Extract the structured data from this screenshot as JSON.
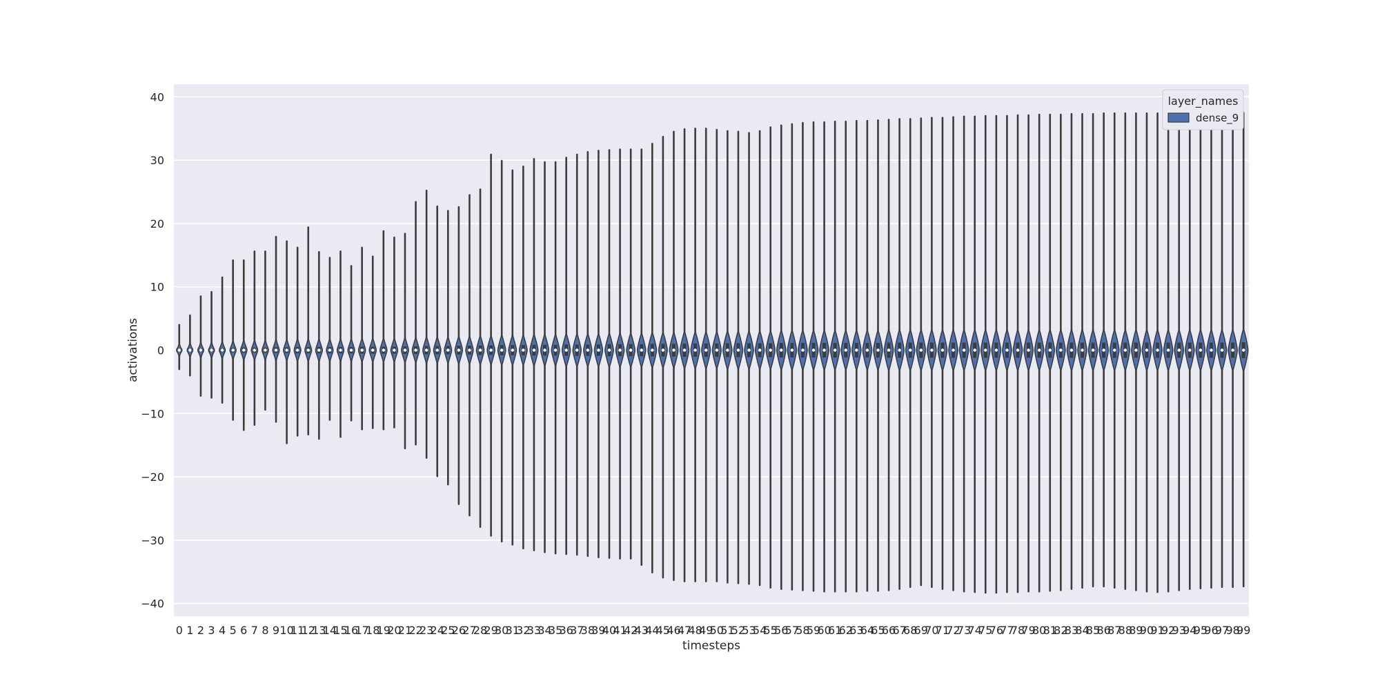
{
  "chart_data": {
    "type": "violin",
    "xlabel": "timesteps",
    "ylabel": "activations",
    "ylim": [
      -42,
      42
    ],
    "yticks": [
      40,
      30,
      20,
      10,
      0,
      -10,
      -20,
      -30,
      -40
    ],
    "ytick_labels": [
      "40",
      "30",
      "20",
      "10",
      "0",
      "−10",
      "−20",
      "−30",
      "−40"
    ],
    "grid": true,
    "legend": {
      "title": "layer_names",
      "position": "top-right",
      "entries": [
        {
          "label": "dense_9",
          "color": "#4c72b0"
        }
      ]
    },
    "colors": {
      "background": "#eaeaf2",
      "grid": "#ffffff",
      "violin_fill": "#4c72b0",
      "violin_edge": "#3c3c3c"
    },
    "series": [
      {
        "name": "dense_9",
        "categories": [
          "0",
          "1",
          "2",
          "3",
          "4",
          "5",
          "6",
          "7",
          "8",
          "9",
          "10",
          "11",
          "12",
          "13",
          "14",
          "15",
          "16",
          "17",
          "18",
          "19",
          "20",
          "21",
          "22",
          "23",
          "24",
          "25",
          "26",
          "27",
          "28",
          "29",
          "30",
          "31",
          "32",
          "33",
          "34",
          "35",
          "36",
          "37",
          "38",
          "39",
          "40",
          "41",
          "42",
          "43",
          "44",
          "45",
          "46",
          "47",
          "48",
          "49",
          "50",
          "51",
          "52",
          "53",
          "54",
          "55",
          "56",
          "57",
          "58",
          "59",
          "60",
          "61",
          "62",
          "63",
          "64",
          "65",
          "66",
          "67",
          "68",
          "69",
          "70",
          "71",
          "72",
          "73",
          "74",
          "75",
          "76",
          "77",
          "78",
          "79",
          "80",
          "81",
          "82",
          "83",
          "84",
          "85",
          "86",
          "87",
          "88",
          "89",
          "90",
          "91",
          "92",
          "93",
          "94",
          "95",
          "96",
          "97",
          "98",
          "99"
        ],
        "max": [
          4.0,
          5.5,
          8.5,
          9.2,
          11.5,
          14.2,
          14.2,
          15.6,
          15.6,
          17.9,
          17.2,
          16.2,
          19.4,
          15.5,
          14.6,
          15.6,
          13.3,
          16.2,
          14.8,
          18.8,
          17.8,
          18.4,
          23.4,
          25.2,
          22.7,
          22.0,
          22.6,
          24.5,
          25.4,
          30.9,
          29.9,
          28.4,
          29.0,
          30.2,
          29.7,
          29.7,
          30.4,
          30.9,
          31.3,
          31.5,
          31.6,
          31.7,
          31.7,
          31.7,
          32.6,
          33.7,
          34.5,
          34.9,
          35.0,
          35.0,
          34.8,
          34.6,
          34.5,
          34.3,
          34.6,
          35.2,
          35.5,
          35.7,
          35.9,
          36.0,
          36.0,
          36.1,
          36.1,
          36.2,
          36.2,
          36.3,
          36.4,
          36.5,
          36.5,
          36.6,
          36.7,
          36.7,
          36.8,
          36.9,
          36.9,
          37.0,
          37.0,
          37.0,
          37.1,
          37.1,
          37.2,
          37.2,
          37.2,
          37.3,
          37.3,
          37.3,
          37.4,
          37.4,
          37.4,
          37.4,
          37.4,
          37.4,
          37.5,
          37.5,
          37.5,
          37.5,
          37.5,
          37.5,
          37.5,
          37.5
        ],
        "min": [
          -3.0,
          -4.0,
          -7.2,
          -7.5,
          -8.3,
          -11.0,
          -12.6,
          -11.8,
          -9.4,
          -11.3,
          -14.7,
          -13.5,
          -13.3,
          -14.0,
          -11.0,
          -13.7,
          -11.1,
          -12.5,
          -12.3,
          -12.5,
          -12.2,
          -15.5,
          -14.9,
          -17.0,
          -19.9,
          -21.2,
          -24.3,
          -26.1,
          -27.9,
          -29.3,
          -30.2,
          -30.7,
          -31.3,
          -31.6,
          -31.9,
          -32.1,
          -32.2,
          -32.3,
          -32.5,
          -32.7,
          -32.8,
          -32.9,
          -32.9,
          -33.9,
          -35.1,
          -35.9,
          -36.3,
          -36.5,
          -36.5,
          -36.5,
          -36.5,
          -36.7,
          -36.8,
          -36.9,
          -37.1,
          -37.5,
          -37.7,
          -37.8,
          -37.9,
          -38.0,
          -38.1,
          -38.1,
          -38.1,
          -38.1,
          -38.0,
          -38.0,
          -37.9,
          -37.7,
          -37.4,
          -37.1,
          -37.4,
          -37.7,
          -37.9,
          -38.1,
          -38.2,
          -38.3,
          -38.3,
          -38.2,
          -38.2,
          -38.1,
          -38.1,
          -38.0,
          -37.9,
          -37.7,
          -37.5,
          -37.3,
          -37.3,
          -37.5,
          -37.7,
          -37.9,
          -38.1,
          -38.2,
          -38.1,
          -37.9,
          -37.7,
          -37.6,
          -37.5,
          -37.4,
          -37.4,
          -37.3
        ],
        "body_halfheight": [
          0.3,
          0.4,
          0.5,
          0.5,
          0.6,
          0.7,
          0.8,
          0.8,
          0.8,
          0.9,
          0.9,
          1.0,
          1.0,
          1.0,
          1.0,
          1.0,
          1.0,
          1.1,
          1.1,
          1.1,
          1.1,
          1.2,
          1.2,
          1.3,
          1.3,
          1.3,
          1.4,
          1.4,
          1.5,
          1.5,
          1.6,
          1.6,
          1.6,
          1.7,
          1.7,
          1.7,
          1.8,
          1.8,
          1.8,
          1.8,
          1.9,
          1.9,
          1.9,
          1.9,
          2.0,
          2.0,
          2.0,
          2.1,
          2.1,
          2.1,
          2.1,
          2.2,
          2.2,
          2.2,
          2.2,
          2.2,
          2.3,
          2.3,
          2.3,
          2.3,
          2.3,
          2.3,
          2.3,
          2.3,
          2.3,
          2.3,
          2.4,
          2.4,
          2.4,
          2.4,
          2.4,
          2.4,
          2.4,
          2.4,
          2.4,
          2.4,
          2.4,
          2.4,
          2.4,
          2.4,
          2.4,
          2.4,
          2.4,
          2.4,
          2.4,
          2.4,
          2.4,
          2.4,
          2.4,
          2.4,
          2.4,
          2.4,
          2.4,
          2.4,
          2.4,
          2.4,
          2.4,
          2.4,
          2.4,
          2.5
        ]
      }
    ]
  }
}
